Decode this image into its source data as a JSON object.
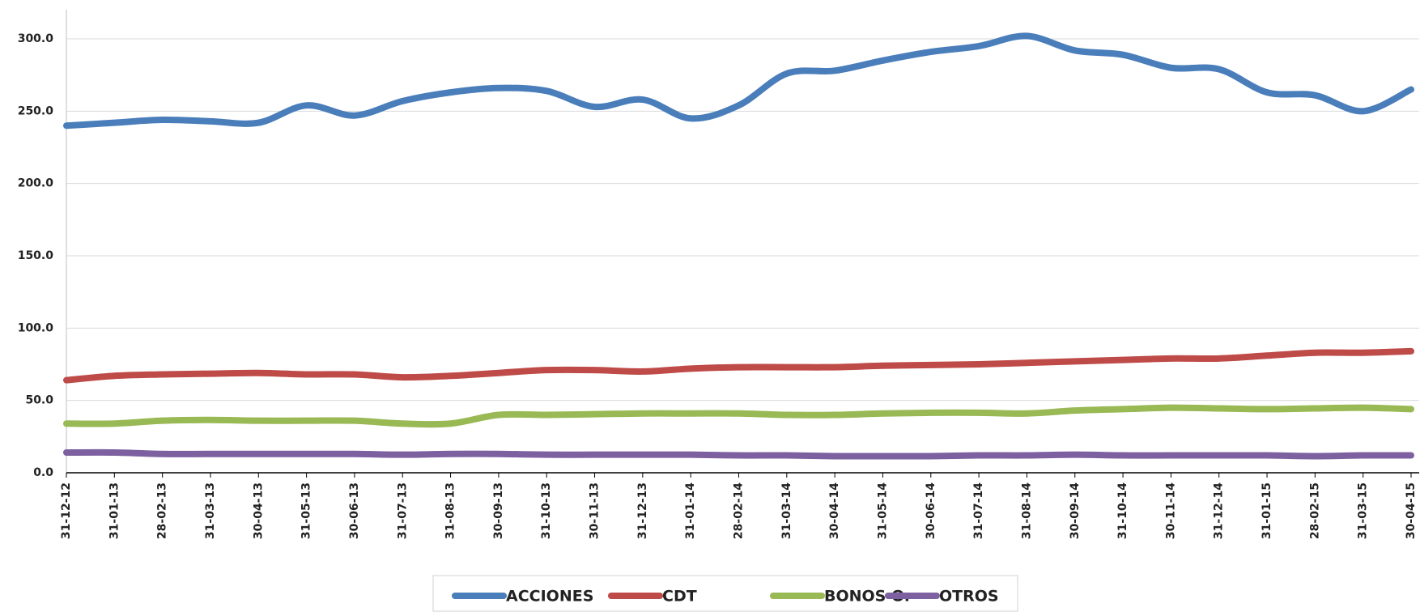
{
  "chart_data": {
    "type": "line",
    "categories": [
      "31-12-12",
      "31-01-13",
      "28-02-13",
      "31-03-13",
      "30-04-13",
      "31-05-13",
      "30-06-13",
      "31-07-13",
      "31-08-13",
      "30-09-13",
      "31-10-13",
      "30-11-13",
      "31-12-13",
      "31-01-14",
      "28-02-14",
      "31-03-14",
      "30-04-14",
      "31-05-14",
      "30-06-14",
      "31-07-14",
      "31-08-14",
      "30-09-14",
      "31-10-14",
      "30-11-14",
      "31-12-14",
      "31-01-15",
      "28-02-15",
      "31-03-15",
      "30-04-15"
    ],
    "series": [
      {
        "name": "ACCIONES",
        "color": "#4a7ebb",
        "values": [
          240,
          242,
          244,
          243,
          242,
          254,
          247,
          257,
          263,
          266,
          264,
          253,
          258,
          245,
          254,
          276,
          278,
          285,
          291,
          295,
          302,
          292,
          289,
          280,
          279,
          263,
          261,
          250,
          265
        ]
      },
      {
        "name": "CDT",
        "color": "#be4b48",
        "values": [
          64,
          67,
          68,
          68.5,
          69,
          68,
          68,
          66,
          67,
          69,
          71,
          71,
          70,
          72,
          73,
          73,
          73,
          74,
          74.5,
          75,
          76,
          77,
          78,
          79,
          79,
          81,
          83,
          83,
          84
        ]
      },
      {
        "name": "BONOS O.",
        "color": "#98b954",
        "values": [
          34,
          34,
          36,
          36.5,
          36,
          36,
          36,
          34,
          34,
          40,
          40,
          40.5,
          41,
          41,
          41,
          40,
          40,
          41,
          41.5,
          41.5,
          41,
          43,
          44,
          45,
          44.5,
          44,
          44.5,
          45,
          44
        ]
      },
      {
        "name": "OTROS",
        "color": "#7d60a0",
        "values": [
          14,
          14,
          13,
          13,
          13,
          13,
          13,
          12.5,
          13,
          13,
          12.5,
          12.5,
          12.5,
          12.5,
          12,
          12,
          11.5,
          11.5,
          11.5,
          12,
          12,
          12.5,
          12,
          12,
          12,
          12,
          11.5,
          12,
          12
        ]
      }
    ],
    "ylim": [
      0,
      300
    ],
    "yticks": [
      {
        "value": 0,
        "label": "0.0"
      },
      {
        "value": 50,
        "label": "50.0"
      },
      {
        "value": 100,
        "label": "100.0"
      },
      {
        "value": 150,
        "label": "150.0"
      },
      {
        "value": 200,
        "label": "200.0"
      },
      {
        "value": 250,
        "label": "250.0"
      },
      {
        "value": 300,
        "label": "300.0"
      }
    ],
    "grid": true,
    "legend": "bottom"
  }
}
